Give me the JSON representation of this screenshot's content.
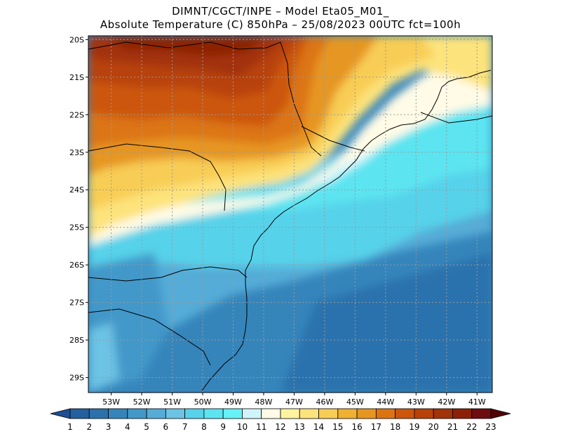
{
  "header": {
    "line1": "DIMNT/CGCT/INPE –  Model Eta05_M01_",
    "line2": "Absolute Temperature (C) 850hPa –  25/08/2023 00UTC fct=100h"
  },
  "map": {
    "lon_range": [
      -53.75,
      -40.5
    ],
    "lat_range": [
      -29.4,
      -19.9
    ],
    "lat_ticks": [
      "20S",
      "21S",
      "22S",
      "23S",
      "24S",
      "25S",
      "26S",
      "27S",
      "28S",
      "29S"
    ],
    "lon_ticks": [
      "53W",
      "52W",
      "51W",
      "50W",
      "49W",
      "48W",
      "47W",
      "46W",
      "45W",
      "44W",
      "43W",
      "42W",
      "41W"
    ],
    "grid": true
  },
  "colorbar": {
    "labels": [
      "1",
      "2",
      "3",
      "4",
      "5",
      "6",
      "7",
      "8",
      "9",
      "10",
      "11",
      "12",
      "13",
      "14",
      "15",
      "16",
      "17",
      "18",
      "19",
      "20",
      "21",
      "22",
      "23"
    ],
    "colors": [
      "#1f4e94",
      "#24609f",
      "#2b72ad",
      "#3585bb",
      "#4298c9",
      "#55acd7",
      "#6cc3e4",
      "#57d2ea",
      "#5ce4f1",
      "#66f2f7",
      "#d0f4fb",
      "#fffbe6",
      "#fff3a0",
      "#fde37c",
      "#f8cd55",
      "#f0b031",
      "#e69620",
      "#dc7412",
      "#cc560c",
      "#b8420a",
      "#a23208",
      "#8c2006",
      "#6e0c10",
      "#500005"
    ],
    "extend": "both"
  }
}
